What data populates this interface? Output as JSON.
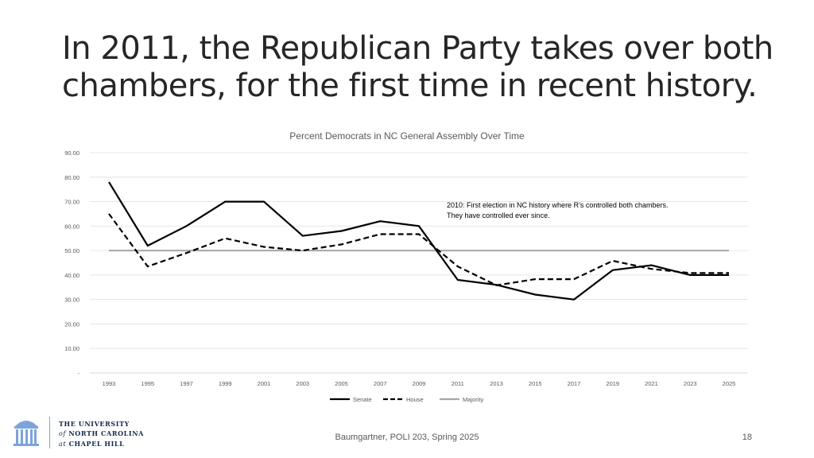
{
  "slide": {
    "title": "In 2011, the Republican Party takes over both chambers, for the first time in recent history.",
    "footer": "Baumgartner, POLI 203, Spring 2025",
    "page_number": "18",
    "logo": {
      "line1": "THE UNIVERSITY",
      "line2_a": "of",
      "line2_b": "NORTH CAROLINA",
      "line3_a": "at",
      "line3_b": "CHAPEL HILL",
      "color": "#13294b",
      "icon": "old-well-icon"
    }
  },
  "chart_data": {
    "type": "line",
    "title": "Percent Democrats in NC General Assembly Over Time",
    "x": [
      "1993",
      "1995",
      "1997",
      "1999",
      "2001",
      "2003",
      "2005",
      "2007",
      "2009",
      "2011",
      "2013",
      "2015",
      "2017",
      "2019",
      "2021",
      "2023",
      "2025"
    ],
    "y_ticks": [
      "-",
      "10.00",
      "20.00",
      "30.00",
      "40.00",
      "50.00",
      "60.00",
      "70.00",
      "80.00",
      "90.00"
    ],
    "ylim": [
      0,
      90
    ],
    "grid": true,
    "legend_position": "bottom",
    "series": [
      {
        "name": "Senate",
        "style": "solid",
        "color": "#000000",
        "values": [
          78,
          52,
          60,
          70,
          70,
          56,
          58,
          62,
          60,
          38,
          36,
          32,
          30,
          42,
          44,
          40,
          40
        ]
      },
      {
        "name": "House",
        "style": "dashed",
        "color": "#000000",
        "values": [
          65,
          43.5,
          49,
          55,
          51.5,
          50,
          52.5,
          56.7,
          56.7,
          43.5,
          35.8,
          38.3,
          38.3,
          45.8,
          42.5,
          40.8,
          40.8
        ]
      },
      {
        "name": "Majority",
        "style": "solid",
        "color": "#a6a6a6",
        "values": [
          50,
          50,
          50,
          50,
          50,
          50,
          50,
          50,
          50,
          50,
          50,
          50,
          50,
          50,
          50,
          50,
          50
        ]
      }
    ],
    "annotation": {
      "line1": "2010: First election in NC history where R’s controlled both chambers.",
      "line2": "They have controlled ever since.",
      "anchor_x": "2011",
      "anchor_y": 72
    }
  }
}
